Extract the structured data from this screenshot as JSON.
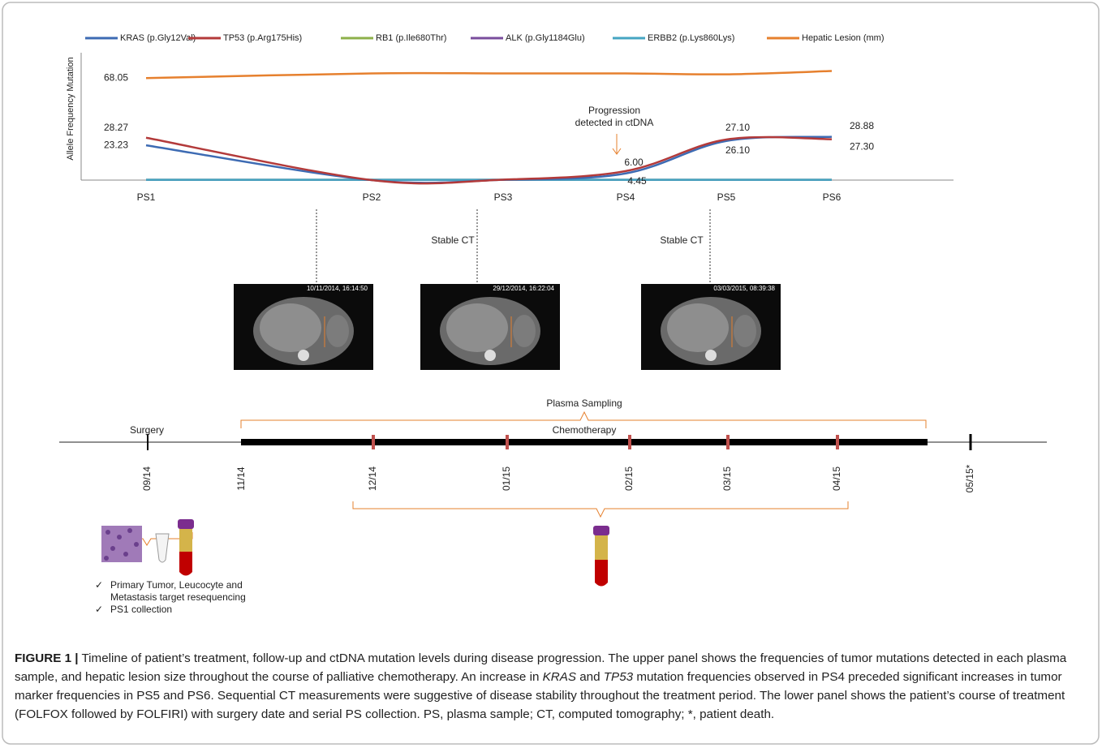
{
  "chart_data": {
    "type": "line",
    "y_label": "Allele Frequency Mutation",
    "categories": [
      "PS1",
      "PS2",
      "PS3",
      "PS4",
      "PS5",
      "PS6"
    ],
    "ylim": [
      0,
      85
    ],
    "series": [
      {
        "name": "KRAS (p.Gly12Val)",
        "color": "#3d6bb3",
        "values": [
          23.23,
          0,
          0.2,
          4.45,
          26.1,
          28.88
        ],
        "value_labels": [
          "23.23",
          null,
          null,
          "4.45",
          "26.10",
          "28.88"
        ]
      },
      {
        "name": "TP53 (p.Arg175His)",
        "color": "#b33a3a",
        "values": [
          28.27,
          0,
          0.3,
          6.0,
          27.1,
          27.3
        ],
        "value_labels": [
          "28.27",
          null,
          null,
          "6.00",
          "27.10",
          "27.30"
        ]
      },
      {
        "name": "RB1 (p.Ile680Thr)",
        "color": "#8db04a",
        "values": [
          0.2,
          0.2,
          0.2,
          0.2,
          0.2,
          0.2
        ]
      },
      {
        "name": "ALK (p.Gly1184Glu)",
        "color": "#7a4d9c",
        "values": [
          0.2,
          0.2,
          0.2,
          0.2,
          0.2,
          0.2
        ]
      },
      {
        "name": "ERBB2 (p.Lys860Lys)",
        "color": "#45a5c2",
        "values": [
          0.2,
          0.2,
          0.2,
          0.2,
          0.2,
          0.2
        ]
      },
      {
        "name": "Hepatic Lesion (mm)",
        "color": "#e6802e",
        "values": [
          68.05,
          71.2,
          71.2,
          71.2,
          70.6,
          72.8
        ],
        "value_labels": [
          "68.05",
          null,
          null,
          null,
          null,
          null
        ]
      }
    ],
    "annotation": [
      "Progression",
      "detected in ctDNA"
    ]
  },
  "ct_scans": {
    "label": "Stable CT",
    "timestamps": [
      "10/11/2014, 16:14:50",
      "29/12/2014, 16:22:04",
      "03/03/2015, 08:39:38"
    ]
  },
  "timeline": {
    "plasma_sampling": "Plasma Sampling",
    "chemotherapy": "Chemotherapy",
    "surgery": "Surgery",
    "dates": [
      "09/14",
      "11/14",
      "12/14",
      "01/15",
      "02/15",
      "03/15",
      "04/15",
      "05/15*"
    ]
  },
  "checklist": [
    "Primary Tumor, Leucocyte and",
    "Metastasis target resequencing",
    "PS1 collection"
  ],
  "caption": {
    "label": "FIGURE 1 |",
    "parts": [
      " Timeline of patient’s treatment, follow-up and ctDNA mutation levels during disease progression. The upper panel shows the frequencies of tumor mutations detected in each plasma sample, and hepatic lesion size throughout the course of palliative chemotherapy. An increase in ",
      "KRAS",
      " and ",
      "TP53",
      " mutation frequencies observed in PS4 preceded significant increases in tumor marker frequencies in PS5 and PS6. Sequential CT measurements were suggestive of disease stability throughout the treatment period. The lower panel shows the patient’s course of treatment (FOLFOX followed by FOLFIRI) with surgery date and serial PS collection. PS, plasma sample; CT, computed tomography; *, patient death."
    ]
  }
}
